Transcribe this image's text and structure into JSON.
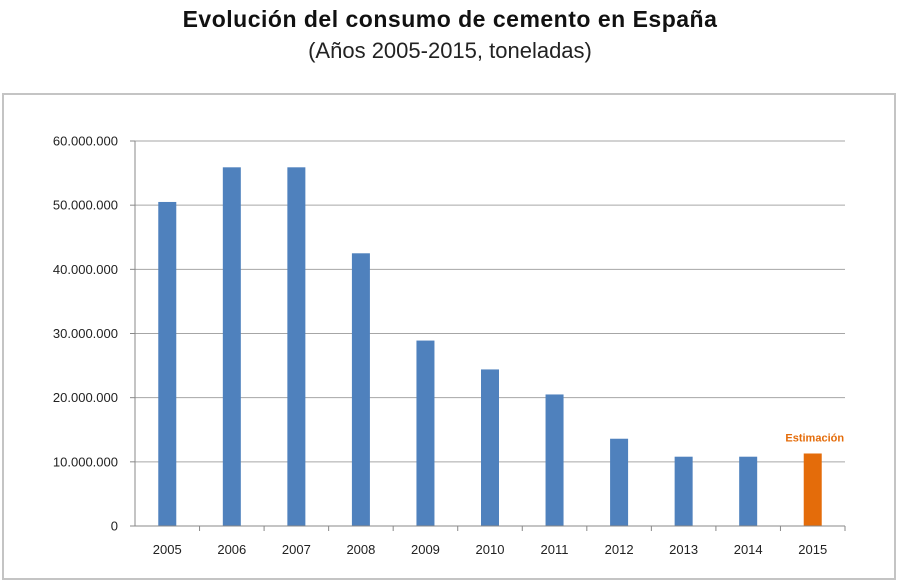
{
  "chart_data": {
    "type": "bar",
    "title": "Evolución del consumo de cemento en España",
    "subtitle": "(Años 2005-2015, toneladas)",
    "xlabel": "",
    "ylabel": "",
    "ylim": [
      0,
      60000000
    ],
    "grid": true,
    "categories": [
      "2005",
      "2006",
      "2007",
      "2008",
      "2009",
      "2010",
      "2011",
      "2012",
      "2013",
      "2014",
      "2015"
    ],
    "values": [
      50500000,
      55900000,
      55900000,
      42500000,
      28900000,
      24400000,
      20500000,
      13600000,
      10800000,
      10800000,
      11300000
    ],
    "y_ticks": [
      0,
      10000000,
      20000000,
      30000000,
      40000000,
      50000000,
      60000000
    ],
    "y_tick_labels": [
      "0",
      "10.000.000",
      "20.000.000",
      "30.000.000",
      "40.000.000",
      "50.000.000",
      "60.000.000"
    ],
    "bar_color": "#4f81bd",
    "highlight": {
      "category": "2015",
      "color": "#e46c0a",
      "annotation": "Estimación"
    }
  }
}
